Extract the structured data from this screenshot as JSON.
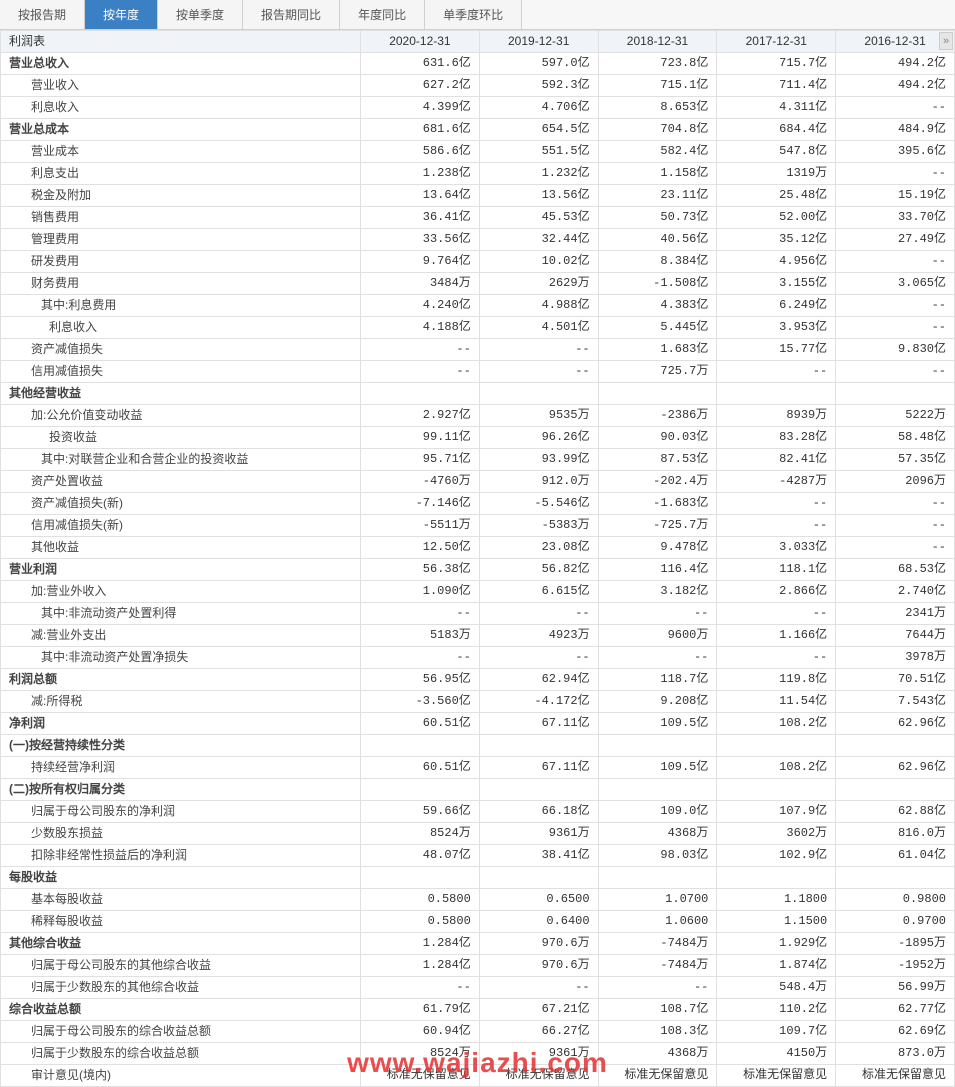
{
  "tabs": [
    {
      "label": "按报告期",
      "active": false
    },
    {
      "label": "按年度",
      "active": true
    },
    {
      "label": "按单季度",
      "active": false
    },
    {
      "label": "报告期同比",
      "active": false
    },
    {
      "label": "年度同比",
      "active": false
    },
    {
      "label": "单季度环比",
      "active": false
    }
  ],
  "table_title": "利润表",
  "periods": [
    "2020-12-31",
    "2019-12-31",
    "2018-12-31",
    "2017-12-31",
    "2016-12-31"
  ],
  "rows": [
    {
      "label": "营业总收入",
      "cls": "bold",
      "v": [
        "631.6亿",
        "597.0亿",
        "723.8亿",
        "715.7亿",
        "494.2亿"
      ]
    },
    {
      "label": "营业收入",
      "cls": "i1",
      "v": [
        "627.2亿",
        "592.3亿",
        "715.1亿",
        "711.4亿",
        "494.2亿"
      ]
    },
    {
      "label": "利息收入",
      "cls": "i1",
      "v": [
        "4.399亿",
        "4.706亿",
        "8.653亿",
        "4.311亿",
        "--"
      ]
    },
    {
      "label": "营业总成本",
      "cls": "bold",
      "v": [
        "681.6亿",
        "654.5亿",
        "704.8亿",
        "684.4亿",
        "484.9亿"
      ]
    },
    {
      "label": "营业成本",
      "cls": "i1",
      "v": [
        "586.6亿",
        "551.5亿",
        "582.4亿",
        "547.8亿",
        "395.6亿"
      ]
    },
    {
      "label": "利息支出",
      "cls": "i1",
      "v": [
        "1.238亿",
        "1.232亿",
        "1.158亿",
        "1319万",
        "--"
      ]
    },
    {
      "label": "税金及附加",
      "cls": "i1",
      "v": [
        "13.64亿",
        "13.56亿",
        "23.11亿",
        "25.48亿",
        "15.19亿"
      ]
    },
    {
      "label": "销售费用",
      "cls": "i1",
      "v": [
        "36.41亿",
        "45.53亿",
        "50.73亿",
        "52.00亿",
        "33.70亿"
      ]
    },
    {
      "label": "管理费用",
      "cls": "i1",
      "v": [
        "33.56亿",
        "32.44亿",
        "40.56亿",
        "35.12亿",
        "27.49亿"
      ]
    },
    {
      "label": "研发费用",
      "cls": "i1",
      "v": [
        "9.764亿",
        "10.02亿",
        "8.384亿",
        "4.956亿",
        "--"
      ]
    },
    {
      "label": "财务费用",
      "cls": "i1",
      "v": [
        "3484万",
        "2629万",
        "-1.508亿",
        "3.155亿",
        "3.065亿"
      ]
    },
    {
      "label": "其中:利息费用",
      "cls": "i1a",
      "v": [
        "4.240亿",
        "4.988亿",
        "4.383亿",
        "6.249亿",
        "--"
      ]
    },
    {
      "label": "利息收入",
      "cls": "i2",
      "v": [
        "4.188亿",
        "4.501亿",
        "5.445亿",
        "3.953亿",
        "--"
      ]
    },
    {
      "label": "资产减值损失",
      "cls": "i1",
      "v": [
        "--",
        "--",
        "1.683亿",
        "15.77亿",
        "9.830亿"
      ]
    },
    {
      "label": "信用减值损失",
      "cls": "i1",
      "v": [
        "--",
        "--",
        "725.7万",
        "--",
        "--"
      ]
    },
    {
      "label": "其他经营收益",
      "cls": "bold",
      "v": [
        "",
        "",
        "",
        "",
        ""
      ]
    },
    {
      "label": "加:公允价值变动收益",
      "cls": "i1",
      "v": [
        "2.927亿",
        "9535万",
        "-2386万",
        "8939万",
        "5222万"
      ]
    },
    {
      "label": "投资收益",
      "cls": "i2",
      "v": [
        "99.11亿",
        "96.26亿",
        "90.03亿",
        "83.28亿",
        "58.48亿"
      ]
    },
    {
      "label": "其中:对联营企业和合营企业的投资收益",
      "cls": "i1a",
      "v": [
        "95.71亿",
        "93.99亿",
        "87.53亿",
        "82.41亿",
        "57.35亿"
      ]
    },
    {
      "label": "资产处置收益",
      "cls": "i1",
      "v": [
        "-4760万",
        "912.0万",
        "-202.4万",
        "-4287万",
        "2096万"
      ]
    },
    {
      "label": "资产减值损失(新)",
      "cls": "i1",
      "v": [
        "-7.146亿",
        "-5.546亿",
        "-1.683亿",
        "--",
        "--"
      ]
    },
    {
      "label": "信用减值损失(新)",
      "cls": "i1",
      "v": [
        "-5511万",
        "-5383万",
        "-725.7万",
        "--",
        "--"
      ]
    },
    {
      "label": "其他收益",
      "cls": "i1",
      "v": [
        "12.50亿",
        "23.08亿",
        "9.478亿",
        "3.033亿",
        "--"
      ]
    },
    {
      "label": "营业利润",
      "cls": "bold",
      "v": [
        "56.38亿",
        "56.82亿",
        "116.4亿",
        "118.1亿",
        "68.53亿"
      ]
    },
    {
      "label": "加:营业外收入",
      "cls": "i1",
      "v": [
        "1.090亿",
        "6.615亿",
        "3.182亿",
        "2.866亿",
        "2.740亿"
      ]
    },
    {
      "label": "其中:非流动资产处置利得",
      "cls": "i1a",
      "v": [
        "--",
        "--",
        "--",
        "--",
        "2341万"
      ]
    },
    {
      "label": "减:营业外支出",
      "cls": "i1",
      "v": [
        "5183万",
        "4923万",
        "9600万",
        "1.166亿",
        "7644万"
      ]
    },
    {
      "label": "其中:非流动资产处置净损失",
      "cls": "i1a",
      "v": [
        "--",
        "--",
        "--",
        "--",
        "3978万"
      ]
    },
    {
      "label": "利润总额",
      "cls": "bold",
      "v": [
        "56.95亿",
        "62.94亿",
        "118.7亿",
        "119.8亿",
        "70.51亿"
      ]
    },
    {
      "label": "减:所得税",
      "cls": "i1",
      "v": [
        "-3.560亿",
        "-4.172亿",
        "9.208亿",
        "11.54亿",
        "7.543亿"
      ]
    },
    {
      "label": "净利润",
      "cls": "bold",
      "v": [
        "60.51亿",
        "67.11亿",
        "109.5亿",
        "108.2亿",
        "62.96亿"
      ]
    },
    {
      "label": "(一)按经营持续性分类",
      "cls": "bold",
      "v": [
        "",
        "",
        "",
        "",
        ""
      ]
    },
    {
      "label": "持续经营净利润",
      "cls": "i1",
      "v": [
        "60.51亿",
        "67.11亿",
        "109.5亿",
        "108.2亿",
        "62.96亿"
      ]
    },
    {
      "label": "(二)按所有权归属分类",
      "cls": "bold",
      "v": [
        "",
        "",
        "",
        "",
        ""
      ]
    },
    {
      "label": "归属于母公司股东的净利润",
      "cls": "i1",
      "v": [
        "59.66亿",
        "66.18亿",
        "109.0亿",
        "107.9亿",
        "62.88亿"
      ]
    },
    {
      "label": "少数股东损益",
      "cls": "i1",
      "v": [
        "8524万",
        "9361万",
        "4368万",
        "3602万",
        "816.0万"
      ]
    },
    {
      "label": "扣除非经常性损益后的净利润",
      "cls": "i1",
      "v": [
        "48.07亿",
        "38.41亿",
        "98.03亿",
        "102.9亿",
        "61.04亿"
      ]
    },
    {
      "label": "每股收益",
      "cls": "bold",
      "v": [
        "",
        "",
        "",
        "",
        ""
      ]
    },
    {
      "label": "基本每股收益",
      "cls": "i1",
      "v": [
        "0.5800",
        "0.6500",
        "1.0700",
        "1.1800",
        "0.9800"
      ]
    },
    {
      "label": "稀释每股收益",
      "cls": "i1",
      "v": [
        "0.5800",
        "0.6400",
        "1.0600",
        "1.1500",
        "0.9700"
      ]
    },
    {
      "label": "其他综合收益",
      "cls": "bold",
      "v": [
        "1.284亿",
        "970.6万",
        "-7484万",
        "1.929亿",
        "-1895万"
      ]
    },
    {
      "label": "归属于母公司股东的其他综合收益",
      "cls": "i1",
      "v": [
        "1.284亿",
        "970.6万",
        "-7484万",
        "1.874亿",
        "-1952万"
      ]
    },
    {
      "label": "归属于少数股东的其他综合收益",
      "cls": "i1",
      "v": [
        "--",
        "--",
        "--",
        "548.4万",
        "56.99万"
      ]
    },
    {
      "label": "综合收益总额",
      "cls": "bold",
      "v": [
        "61.79亿",
        "67.21亿",
        "108.7亿",
        "110.2亿",
        "62.77亿"
      ]
    },
    {
      "label": "归属于母公司股东的综合收益总额",
      "cls": "i1",
      "v": [
        "60.94亿",
        "66.27亿",
        "108.3亿",
        "109.7亿",
        "62.69亿"
      ]
    },
    {
      "label": "归属于少数股东的综合收益总额",
      "cls": "i1",
      "v": [
        "8524万",
        "9361万",
        "4368万",
        "4150万",
        "873.0万"
      ]
    },
    {
      "label": "审计意见(境内)",
      "cls": "i1",
      "v": [
        "标准无保留意见",
        "标准无保留意见",
        "标准无保留意见",
        "标准无保留意见",
        "标准无保留意见"
      ]
    }
  ],
  "scroll_arrow": "»",
  "watermark": "www.wajiazhi.com"
}
